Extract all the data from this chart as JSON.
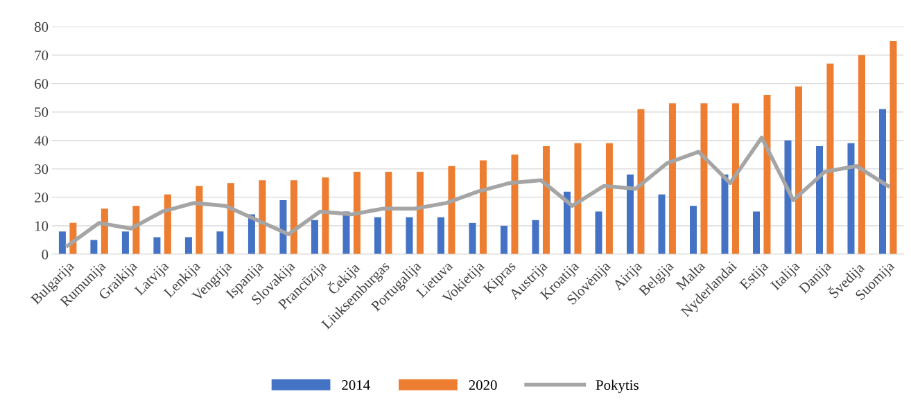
{
  "chart_data": {
    "type": "bar",
    "categories": [
      "Bulgarija",
      "Rumunija",
      "Graikija",
      "Latvija",
      "Lenkija",
      "Vengrija",
      "Ispanija",
      "Slovakija",
      "Prancūzija",
      "Čekija",
      "Liuksemburgas",
      "Portugalija",
      "Lietuva",
      "Vokietija",
      "Kipras",
      "Austrija",
      "Kroatija",
      "Slovėnija",
      "Airija",
      "Belgija",
      "Malta",
      "Nyderlandai",
      "Estija",
      "Italija",
      "Danija",
      "Švedija",
      "Suomija"
    ],
    "series": [
      {
        "name": "2014",
        "color": "#4472c4",
        "values": [
          8,
          5,
          8,
          6,
          6,
          8,
          14,
          19,
          12,
          15,
          13,
          13,
          13,
          11,
          10,
          12,
          22,
          15,
          28,
          21,
          17,
          28,
          15,
          40,
          38,
          39,
          51
        ]
      },
      {
        "name": "2020",
        "color": "#ed7d31",
        "values": [
          11,
          16,
          17,
          21,
          24,
          25,
          26,
          26,
          27,
          29,
          29,
          29,
          31,
          33,
          35,
          38,
          39,
          39,
          51,
          53,
          53,
          53,
          56,
          59,
          67,
          70,
          75
        ]
      },
      {
        "name": "Pokytis",
        "type": "line",
        "color": "#a5a5a5",
        "values": [
          3,
          11,
          9,
          15,
          18,
          17,
          12,
          7,
          15,
          14,
          16,
          16,
          18,
          22,
          25,
          26,
          17,
          24,
          23,
          32,
          36,
          25,
          41,
          19,
          29,
          31,
          24
        ]
      }
    ],
    "ylim": [
      0,
      80
    ],
    "yticks": [
      0,
      10,
      20,
      30,
      40,
      50,
      60,
      70,
      80
    ],
    "grid": "y",
    "legend": "bottom",
    "marker": "none",
    "line_style": "solid"
  }
}
